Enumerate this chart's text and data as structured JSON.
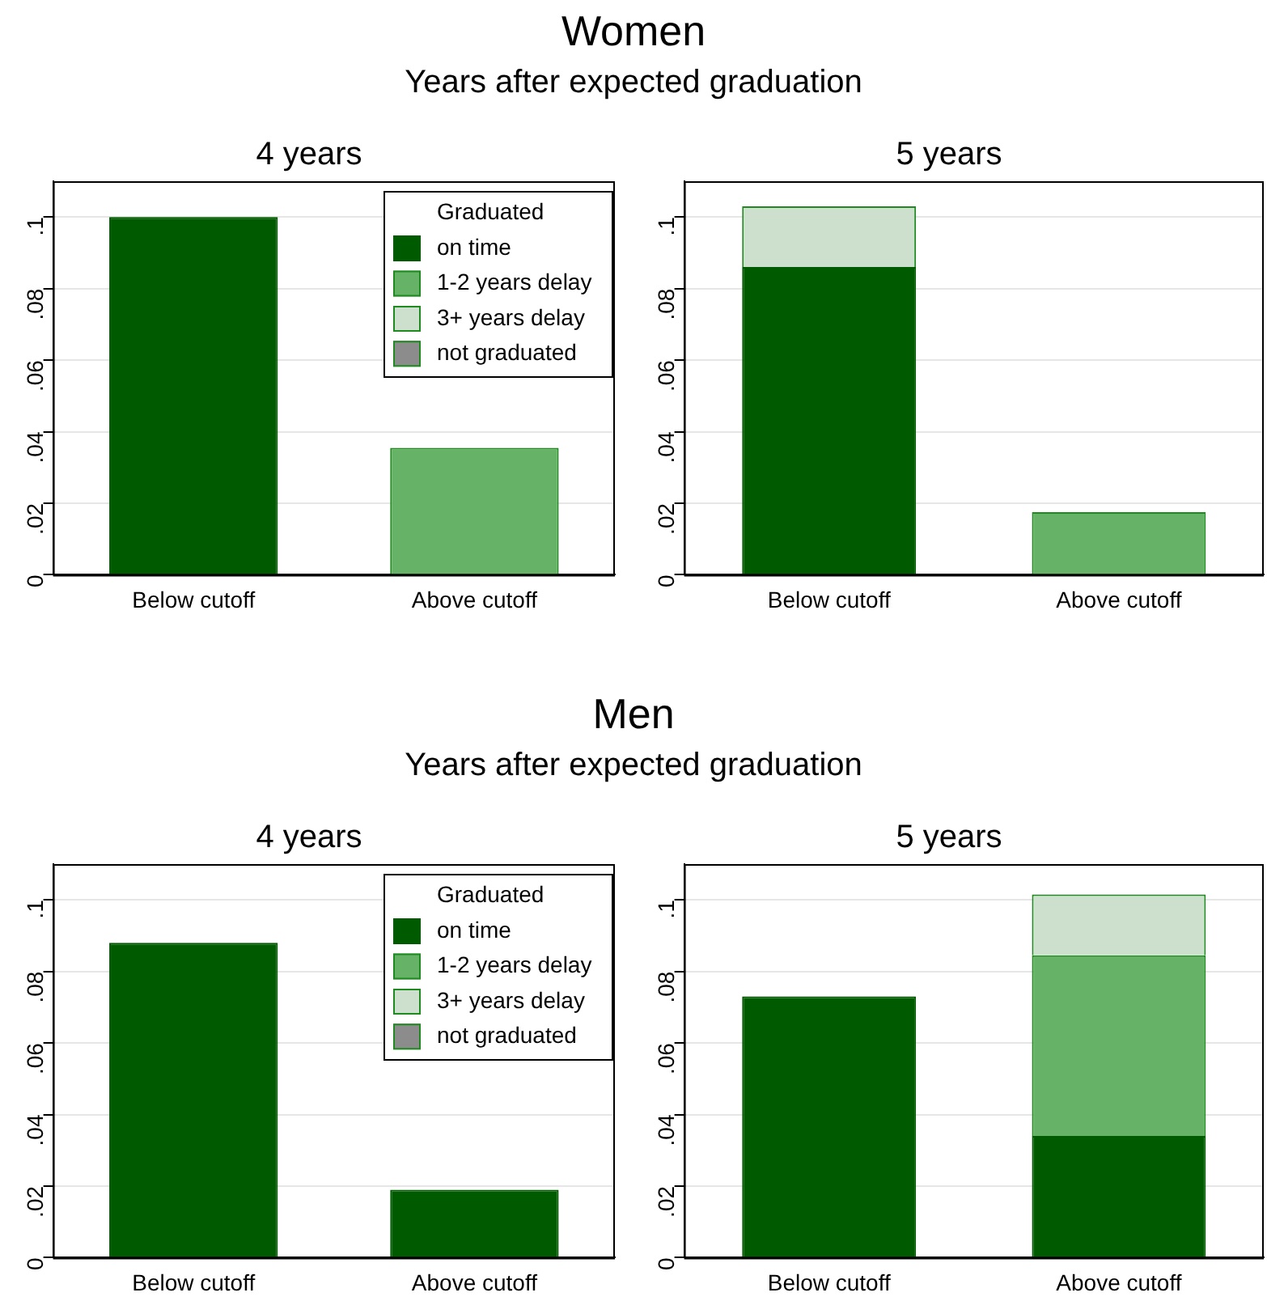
{
  "chart_data": [
    {
      "type": "bar",
      "title": "4 years",
      "annotations": [
        "Women",
        "Years after expected graduation"
      ],
      "categories": [
        "Below cutoff",
        "Above cutoff"
      ],
      "stacked": true,
      "legend": "top right",
      "legend_title": "Graduated",
      "grid": "y",
      "ylim": [
        0,
        0.11
      ],
      "yticks": [
        {
          "value": 0,
          "label": "0"
        },
        {
          "value": 0.02,
          "label": ".02"
        },
        {
          "value": 0.04,
          "label": ".04"
        },
        {
          "value": 0.06,
          "label": ".06"
        },
        {
          "value": 0.08,
          "label": ".08"
        },
        {
          "value": 0.1,
          "label": ".1"
        }
      ],
      "series": [
        {
          "name": "on time",
          "color": "#005a00",
          "values": [
            0.1,
            null
          ]
        },
        {
          "name": "1-2 years delay",
          "color": "#66b266",
          "values": [
            null,
            0.0355
          ]
        },
        {
          "name": "3+ years delay",
          "color": "#cde0cd",
          "values": [
            null,
            null
          ]
        },
        {
          "name": "not graduated",
          "color": "#8c8c8c",
          "values": [
            null,
            null
          ]
        }
      ]
    },
    {
      "type": "bar",
      "title": "5 years",
      "categories": [
        "Below cutoff",
        "Above cutoff"
      ],
      "stacked": true,
      "grid": "y",
      "ylim": [
        0,
        0.11
      ],
      "yticks": [
        {
          "value": 0,
          "label": "0"
        },
        {
          "value": 0.02,
          "label": ".02"
        },
        {
          "value": 0.04,
          "label": ".04"
        },
        {
          "value": 0.06,
          "label": ".06"
        },
        {
          "value": 0.08,
          "label": ".08"
        },
        {
          "value": 0.1,
          "label": ".1"
        }
      ],
      "series": [
        {
          "color": "#005a00",
          "values": [
            0.086,
            null
          ]
        },
        {
          "color": "#66b266",
          "values": [
            null,
            0.0175
          ]
        },
        {
          "color": "#cde0cd",
          "values": [
            0.017,
            null
          ]
        }
      ]
    },
    {
      "type": "bar",
      "title": "4 years",
      "annotations": [
        "Men",
        "Years after expected graduation"
      ],
      "categories": [
        "Below cutoff",
        "Above cutoff"
      ],
      "stacked": true,
      "legend": "top right",
      "legend_title": "Graduated",
      "grid": "y",
      "ylim": [
        0,
        0.11
      ],
      "yticks": [
        {
          "value": 0,
          "label": "0"
        },
        {
          "value": 0.02,
          "label": ".02"
        },
        {
          "value": 0.04,
          "label": ".04"
        },
        {
          "value": 0.06,
          "label": ".06"
        },
        {
          "value": 0.08,
          "label": ".08"
        },
        {
          "value": 0.1,
          "label": ".1"
        }
      ],
      "series": [
        {
          "name": "on time",
          "color": "#005a00",
          "values": [
            0.088,
            0.019
          ]
        },
        {
          "name": "1-2 years delay",
          "color": "#66b266",
          "values": [
            null,
            null
          ]
        },
        {
          "name": "3+ years delay",
          "color": "#cde0cd",
          "values": [
            null,
            null
          ]
        },
        {
          "name": "not graduated",
          "color": "#8c8c8c",
          "values": [
            null,
            null
          ]
        }
      ]
    },
    {
      "type": "bar",
      "title": "5 years",
      "categories": [
        "Below cutoff",
        "Above cutoff"
      ],
      "stacked": true,
      "grid": "y",
      "ylim": [
        0,
        0.11
      ],
      "yticks": [
        {
          "value": 0,
          "label": "0"
        },
        {
          "value": 0.02,
          "label": ".02"
        },
        {
          "value": 0.04,
          "label": ".04"
        },
        {
          "value": 0.06,
          "label": ".06"
        },
        {
          "value": 0.08,
          "label": ".08"
        },
        {
          "value": 0.1,
          "label": ".1"
        }
      ],
      "series": [
        {
          "color": "#005a00",
          "values": [
            0.073,
            0.034
          ]
        },
        {
          "color": "#66b266",
          "values": [
            null,
            0.0505
          ]
        },
        {
          "color": "#cde0cd",
          "values": [
            null,
            0.017
          ]
        }
      ]
    }
  ]
}
